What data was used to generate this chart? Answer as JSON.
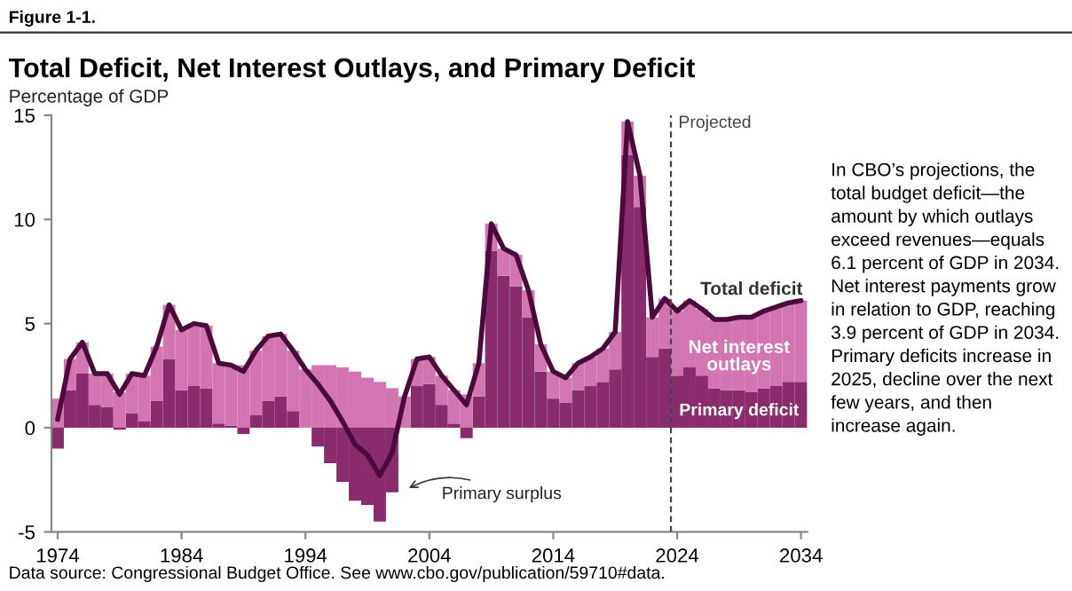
{
  "chart_data": {
    "type": "bar",
    "stacked": true,
    "title": "Total Deficit, Net Interest Outlays, and Primary Deficit",
    "ylabel": "Percentage of GDP",
    "x": [
      1974,
      1975,
      1976,
      1977,
      1978,
      1979,
      1980,
      1981,
      1982,
      1983,
      1984,
      1985,
      1986,
      1987,
      1988,
      1989,
      1990,
      1991,
      1992,
      1993,
      1994,
      1995,
      1996,
      1997,
      1998,
      1999,
      2000,
      2001,
      2002,
      2003,
      2004,
      2005,
      2006,
      2007,
      2008,
      2009,
      2010,
      2011,
      2012,
      2013,
      2014,
      2015,
      2016,
      2017,
      2018,
      2019,
      2020,
      2021,
      2022,
      2023,
      2024,
      2025,
      2026,
      2027,
      2028,
      2029,
      2030,
      2031,
      2032,
      2033,
      2034
    ],
    "series": [
      {
        "name": "Primary deficit",
        "color": "#8a2c6c",
        "values": [
          -1.0,
          1.8,
          2.6,
          1.1,
          1.0,
          -0.1,
          0.7,
          0.3,
          1.3,
          3.3,
          1.8,
          2.0,
          1.9,
          0.2,
          0.1,
          -0.3,
          0.6,
          1.3,
          1.5,
          0.8,
          0.0,
          -0.9,
          -1.7,
          -2.6,
          -3.5,
          -3.7,
          -4.5,
          -3.1,
          0.0,
          2.0,
          2.1,
          1.1,
          0.2,
          -0.5,
          1.5,
          8.5,
          7.3,
          6.8,
          5.3,
          2.7,
          1.4,
          1.2,
          1.8,
          2.0,
          2.2,
          2.8,
          13.1,
          10.6,
          3.4,
          3.8,
          2.5,
          2.9,
          2.5,
          1.9,
          1.8,
          1.8,
          1.7,
          1.9,
          2.0,
          2.2,
          2.2
        ]
      },
      {
        "name": "Net interest outlays",
        "color": "#d275b1",
        "values": [
          1.4,
          1.5,
          1.5,
          1.5,
          1.6,
          1.7,
          1.9,
          2.2,
          2.6,
          2.6,
          2.9,
          3.0,
          3.0,
          2.9,
          2.9,
          3.0,
          3.1,
          3.1,
          3.0,
          2.9,
          2.8,
          3.0,
          3.0,
          2.9,
          2.7,
          2.4,
          2.2,
          1.9,
          1.5,
          1.3,
          1.3,
          1.4,
          1.6,
          1.6,
          1.6,
          1.3,
          1.3,
          1.5,
          1.3,
          1.3,
          1.3,
          1.2,
          1.3,
          1.4,
          1.6,
          1.8,
          1.6,
          1.5,
          1.9,
          2.4,
          3.1,
          3.2,
          3.2,
          3.3,
          3.4,
          3.5,
          3.6,
          3.7,
          3.8,
          3.8,
          3.9
        ]
      },
      {
        "name": "Total deficit",
        "type": "line",
        "color": "#4a0b3b",
        "values": [
          0.4,
          3.3,
          4.1,
          2.6,
          2.6,
          1.6,
          2.6,
          2.5,
          3.9,
          5.9,
          4.7,
          5.0,
          4.9,
          3.1,
          3.0,
          2.7,
          3.7,
          4.4,
          4.5,
          3.7,
          2.8,
          2.1,
          1.3,
          0.3,
          -0.8,
          -1.3,
          -2.3,
          -1.2,
          1.5,
          3.3,
          3.4,
          2.5,
          1.8,
          1.1,
          3.1,
          9.8,
          8.6,
          8.3,
          6.6,
          4.0,
          2.7,
          2.4,
          3.1,
          3.4,
          3.8,
          4.6,
          14.7,
          12.1,
          5.3,
          6.2,
          5.6,
          6.1,
          5.7,
          5.2,
          5.2,
          5.3,
          5.3,
          5.6,
          5.8,
          6.0,
          6.1
        ]
      }
    ],
    "xlim": [
      1973.5,
      2034.5
    ],
    "xticks": [
      1974,
      1984,
      1994,
      2004,
      2014,
      2024,
      2034
    ],
    "ylim": [
      -5,
      15
    ],
    "yticks": [
      -5,
      0,
      5,
      10,
      15
    ],
    "grid": false,
    "legend": false,
    "ref_lines": [
      {
        "axis": "x",
        "value": 2023.5,
        "label": "Projected",
        "line_style": "dashed",
        "color": "#444444"
      }
    ],
    "annotations": [
      "Figure 1-1.",
      {
        "text": "Primary surplus",
        "x": 2002,
        "y": -3.0
      },
      "In CBO’s projections, the total budget deficit—the amount by which outlays exceed revenues—equals 6.1 percent of GDP in 2034. Net interest payments grow in relation to GDP, reaching 3.9 percent of GDP in 2034. Primary deficits increase in 2025, decline over the next few years, and then increase again.",
      "Data source: Congressional Budget Office. See www.cbo.gov/publication/59710#data."
    ]
  }
}
